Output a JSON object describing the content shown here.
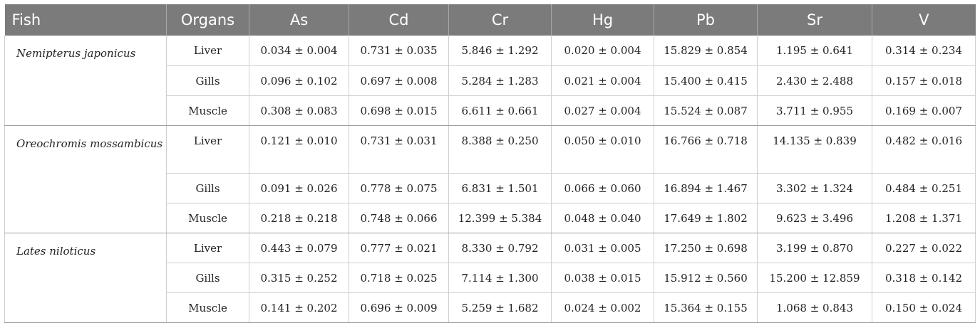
{
  "table": {
    "headers": [
      "Fish",
      "Organs",
      "As",
      "Cd",
      "Cr",
      "Hg",
      "Pb",
      "Sr",
      "V"
    ],
    "groups": [
      {
        "fish": "Nemipterus japonicus",
        "rows": [
          {
            "organ": "Liver",
            "values": [
              "0.034 ± 0.004",
              "0.731 ± 0.035",
              "5.846 ± 1.292",
              "0.020 ± 0.004",
              "15.829 ± 0.854",
              "1.195 ± 0.641",
              "0.314 ± 0.234"
            ]
          },
          {
            "organ": "Gills",
            "values": [
              "0.096 ± 0.102",
              "0.697 ± 0.008",
              "5.284 ± 1.283",
              "0.021 ± 0.004",
              "15.400 ± 0.415",
              "2.430 ± 2.488",
              "0.157 ± 0.018"
            ]
          },
          {
            "organ": "Muscle",
            "values": [
              "0.308 ± 0.083",
              "0.698 ± 0.015",
              "6.611 ± 0.661",
              "0.027 ± 0.004",
              "15.524 ± 0.087",
              "3.711 ± 0.955",
              "0.169 ± 0.007"
            ]
          }
        ]
      },
      {
        "fish": "Oreochromis mossambicus",
        "rows": [
          {
            "organ": "Liver",
            "values": [
              "0.121 ± 0.010",
              "0.731 ± 0.031",
              "8.388 ± 0.250",
              "0.050 ± 0.010",
              "16.766 ± 0.718",
              "14.135 ± 0.839",
              "0.482 ± 0.016"
            ]
          },
          {
            "organ": "Gills",
            "values": [
              "0.091 ± 0.026",
              "0.778 ± 0.075",
              "6.831 ± 1.501",
              "0.066 ± 0.060",
              "16.894 ± 1.467",
              "3.302 ± 1.324",
              "0.484 ± 0.251"
            ]
          },
          {
            "organ": "Muscle",
            "values": [
              "0.218 ± 0.218",
              "0.748 ± 0.066",
              "12.399 ± 5.384",
              "0.048 ± 0.040",
              "17.649 ± 1.802",
              "9.623 ± 3.496",
              "1.208 ± 1.371"
            ]
          }
        ]
      },
      {
        "fish": "Lates niloticus",
        "rows": [
          {
            "organ": "Liver",
            "values": [
              "0.443 ± 0.079",
              "0.777 ± 0.021",
              "8.330 ± 0.792",
              "0.031 ± 0.005",
              "17.250 ± 0.698",
              "3.199 ± 0.870",
              "0.227 ± 0.022"
            ]
          },
          {
            "organ": "Gills",
            "values": [
              "0.315 ± 0.252",
              "0.718 ± 0.025",
              "7.114 ± 1.300",
              "0.038 ± 0.015",
              "15.912 ± 0.560",
              "15.200 ± 12.859",
              "0.318 ± 0.142"
            ]
          },
          {
            "organ": "Muscle",
            "values": [
              "0.141 ± 0.202",
              "0.696 ± 0.009",
              "5.259 ± 1.682",
              "0.024 ± 0.002",
              "15.364 ± 0.155",
              "1.068 ± 0.843",
              "0.150 ± 0.024"
            ]
          }
        ]
      }
    ]
  }
}
